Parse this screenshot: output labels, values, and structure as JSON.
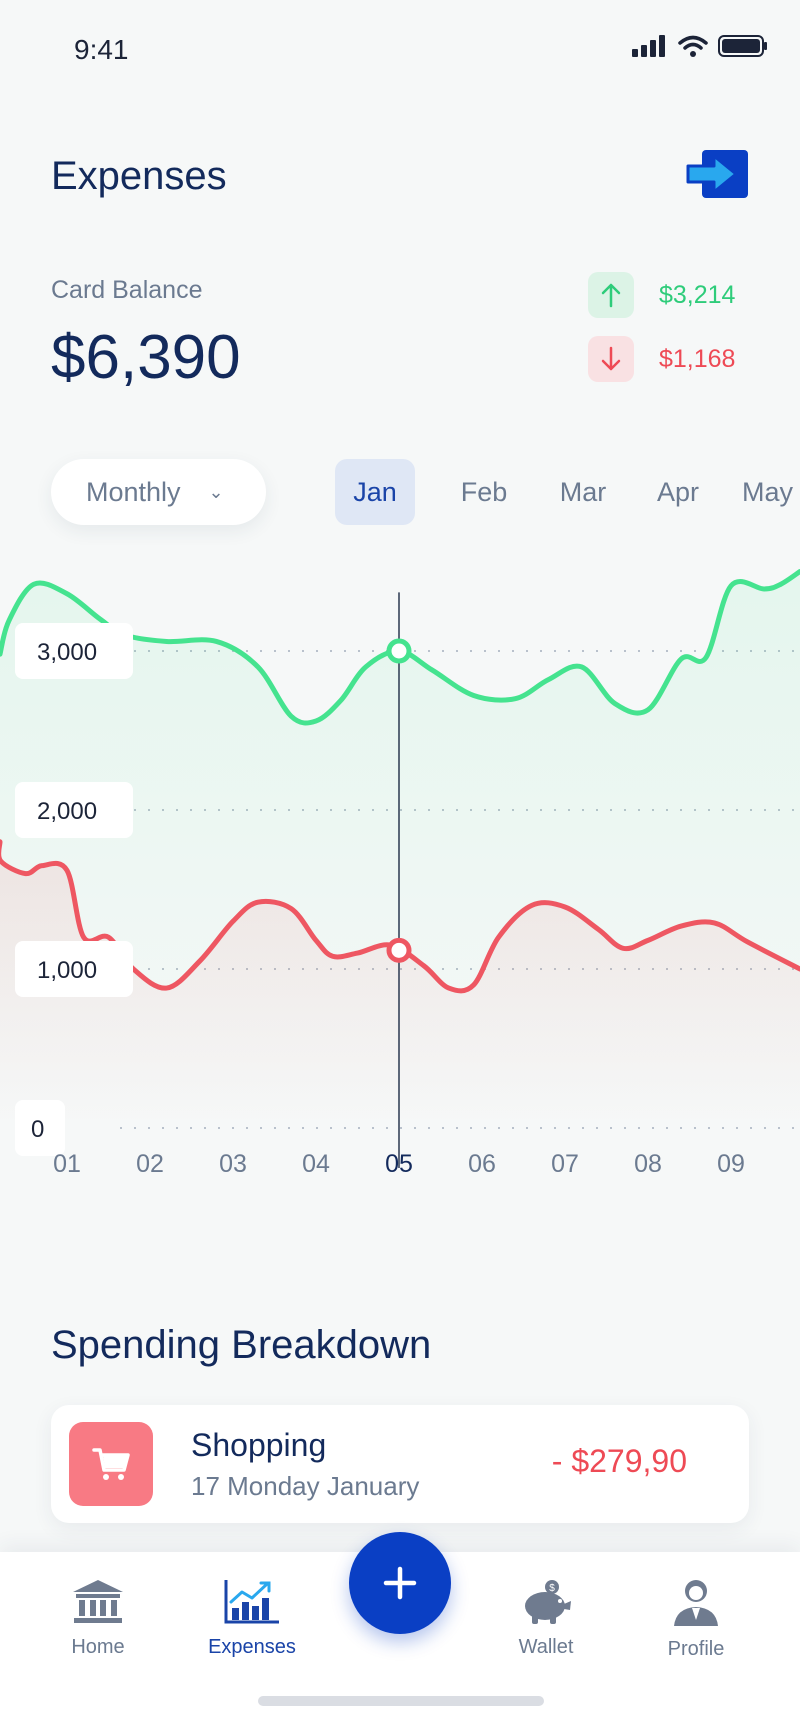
{
  "status_bar": {
    "time": "9:41"
  },
  "header": {
    "title": "Expenses"
  },
  "balance": {
    "label": "Card Balance",
    "value": "$6,390",
    "income": "$3,214",
    "expense": "$1,168"
  },
  "filters": {
    "period": "Monthly",
    "months": [
      "Jan",
      "Feb",
      "Mar",
      "Apr",
      "May"
    ],
    "active_month": "Jan"
  },
  "chart_data": {
    "type": "line",
    "x": [
      "01",
      "02",
      "03",
      "04",
      "05",
      "06",
      "07",
      "08",
      "09"
    ],
    "x_highlight": "05",
    "ylim": [
      0,
      3400
    ],
    "yticks": [
      "0",
      "1,000",
      "2,000",
      "3,000"
    ],
    "grid": true,
    "series": [
      {
        "color": "#45e38f",
        "x": [
          0,
          0.3,
          0.6,
          1.0,
          1.4,
          1.7,
          2.2,
          2.8,
          3.3,
          3.7,
          4.0,
          4.3,
          4.6,
          5.0,
          5.4,
          5.9,
          6.4,
          6.8,
          7.2,
          7.6,
          8.0,
          8.4,
          8.7,
          9.0,
          9.4,
          9.6,
          10.0
        ],
        "y": [
          2980,
          3190,
          3420,
          3360,
          3200,
          3100,
          3060,
          3060,
          2900,
          2590,
          2560,
          2690,
          2900,
          3000,
          2880,
          2720,
          2700,
          2820,
          2900,
          2670,
          2630,
          2950,
          2960,
          3410,
          3390,
          3420,
          3500
        ]
      },
      {
        "color": "#ee5762",
        "x": [
          0,
          0.2,
          0.5,
          0.7,
          1.0,
          1.2,
          1.5,
          1.8,
          2.2,
          2.6,
          3.0,
          3.3,
          3.7,
          4.0,
          4.2,
          4.5,
          4.9,
          5.3,
          5.6,
          5.9,
          6.2,
          6.6,
          7.0,
          7.4,
          7.7,
          8.0,
          8.4,
          8.8,
          9.2,
          10.0
        ],
        "y": [
          1800,
          1680,
          1600,
          1650,
          1620,
          1200,
          1200,
          1000,
          880,
          1050,
          1300,
          1420,
          1380,
          1180,
          1080,
          1100,
          1150,
          1020,
          880,
          900,
          1200,
          1400,
          1390,
          1250,
          1130,
          1180,
          1270,
          1290,
          1170,
          1000
        ]
      }
    ]
  },
  "breakdown": {
    "title": "Spending Breakdown",
    "items": [
      {
        "title": "Shopping",
        "date": "17 Monday January",
        "amount": "- $279,90",
        "icon": "cart-icon",
        "color": "#f87a84"
      }
    ]
  },
  "nav": {
    "items": [
      {
        "label": "Home",
        "icon": "bank-icon"
      },
      {
        "label": "Expenses",
        "icon": "chart-icon"
      },
      {
        "label": "Wallet",
        "icon": "piggy-bank-icon"
      },
      {
        "label": "Profile",
        "icon": "user-icon"
      }
    ],
    "active": "Expenses",
    "fab_icon": "plus-icon"
  },
  "colors": {
    "accent": "#0a3fc4",
    "income": "#2ecc7a",
    "expense": "#ee4a55",
    "title": "#132a5c"
  }
}
